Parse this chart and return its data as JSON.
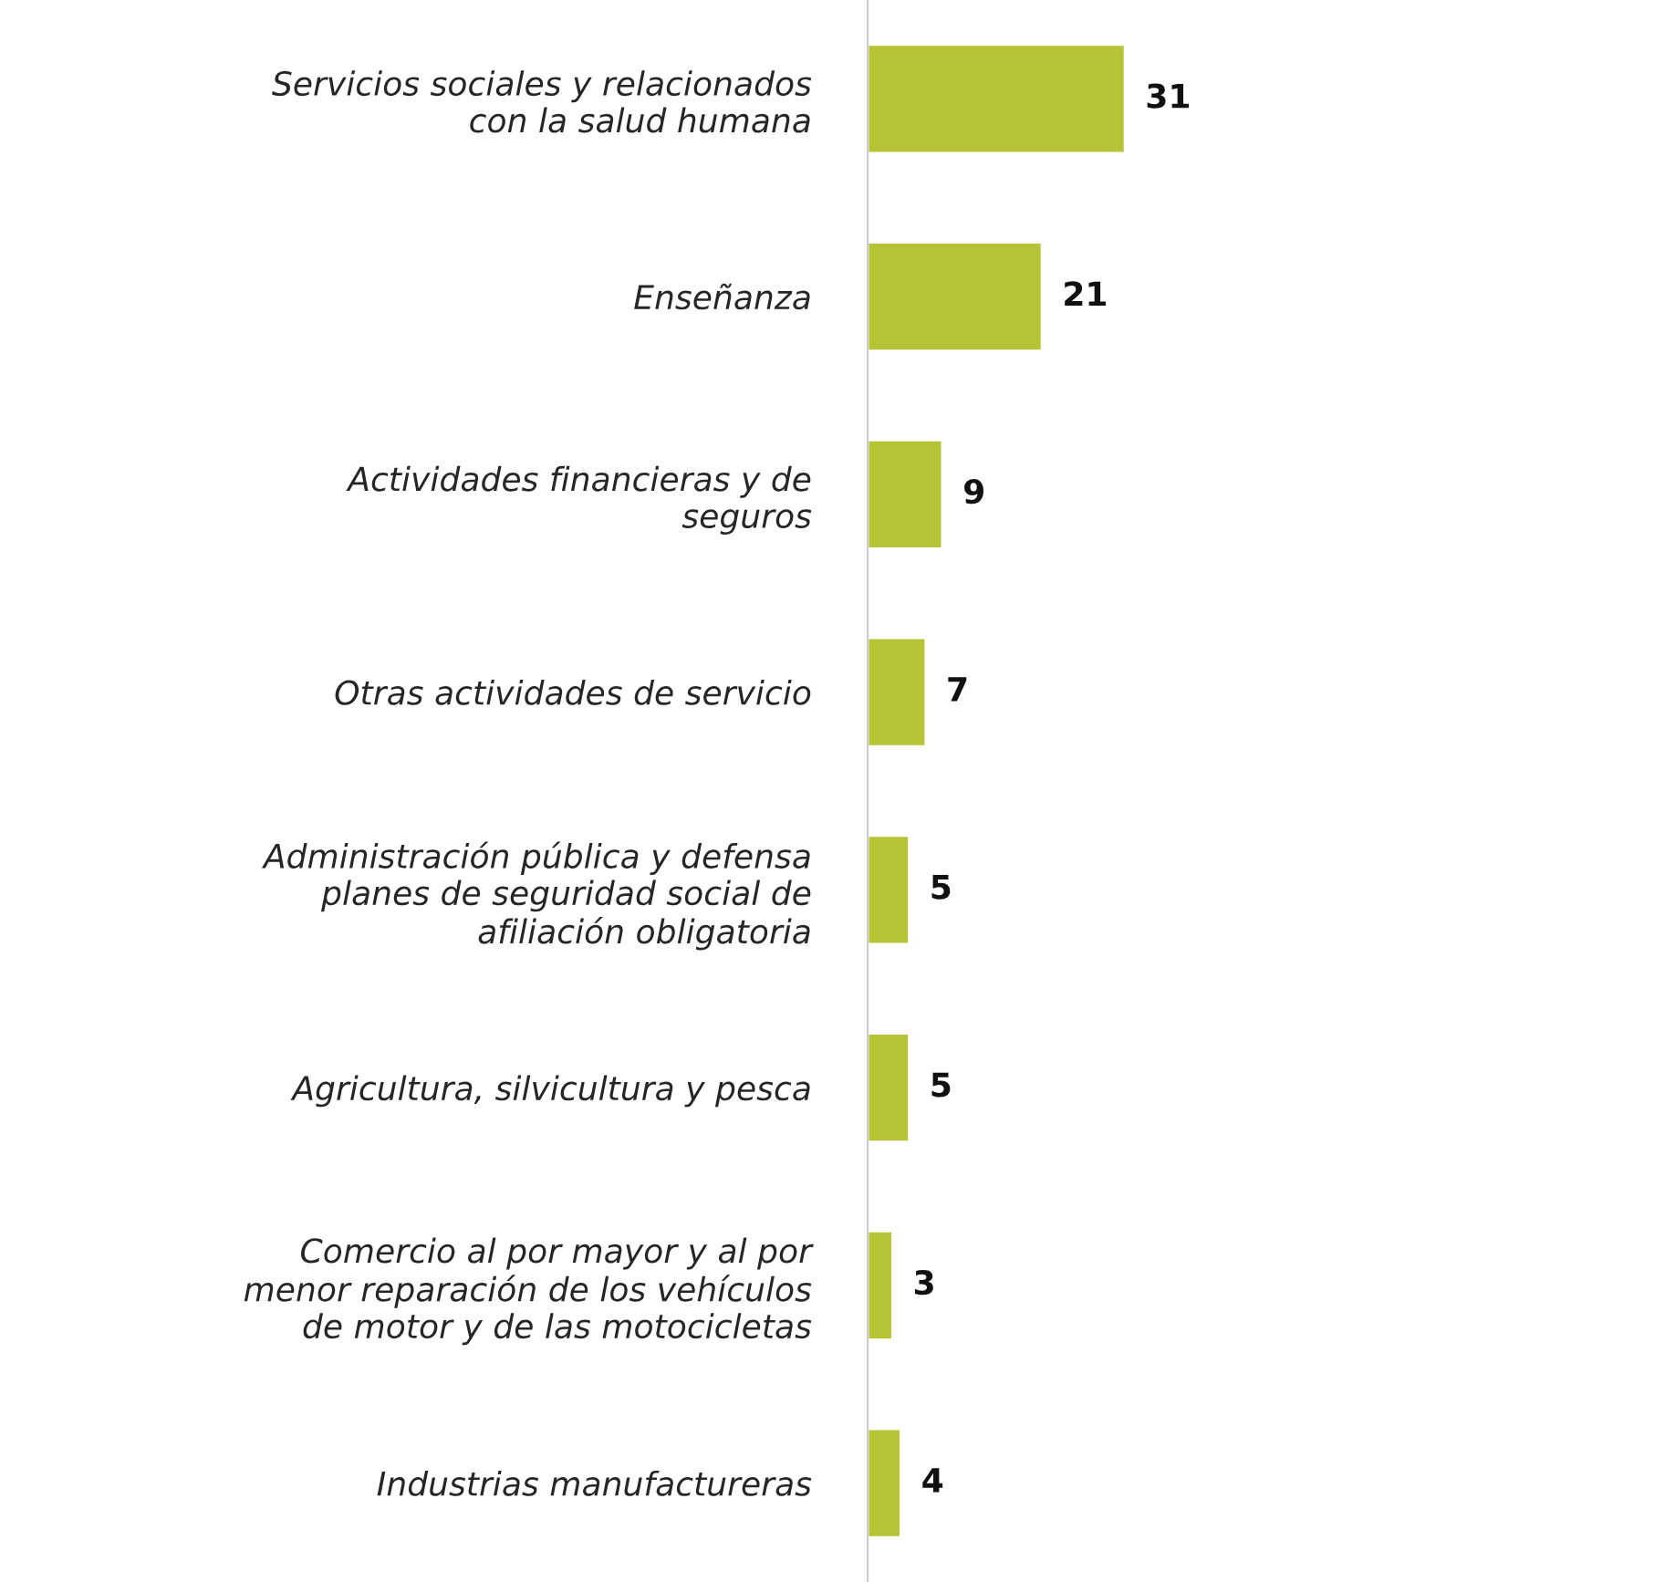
{
  "chart_data": {
    "type": "bar",
    "orientation": "horizontal",
    "categories": [
      "Servicios sociales y relacionados\ncon la salud humana",
      "Enseñanza",
      "Actividades financieras y de\nseguros",
      "Otras actividades de servicio",
      "Administración pública y defensa\nplanes de seguridad social de\nafiliación obligatoria",
      "Agricultura, silvicultura y pesca",
      "Comercio al por mayor y al por\nmenor reparación de los vehículos\nde motor y de las motocicletas",
      "Industrias manufactureras"
    ],
    "values": [
      31,
      21,
      9,
      7,
      5,
      5,
      3,
      4
    ],
    "color": "#b5c334",
    "data_labels": true,
    "tick_labels": "y",
    "grid": false,
    "legend": false
  }
}
